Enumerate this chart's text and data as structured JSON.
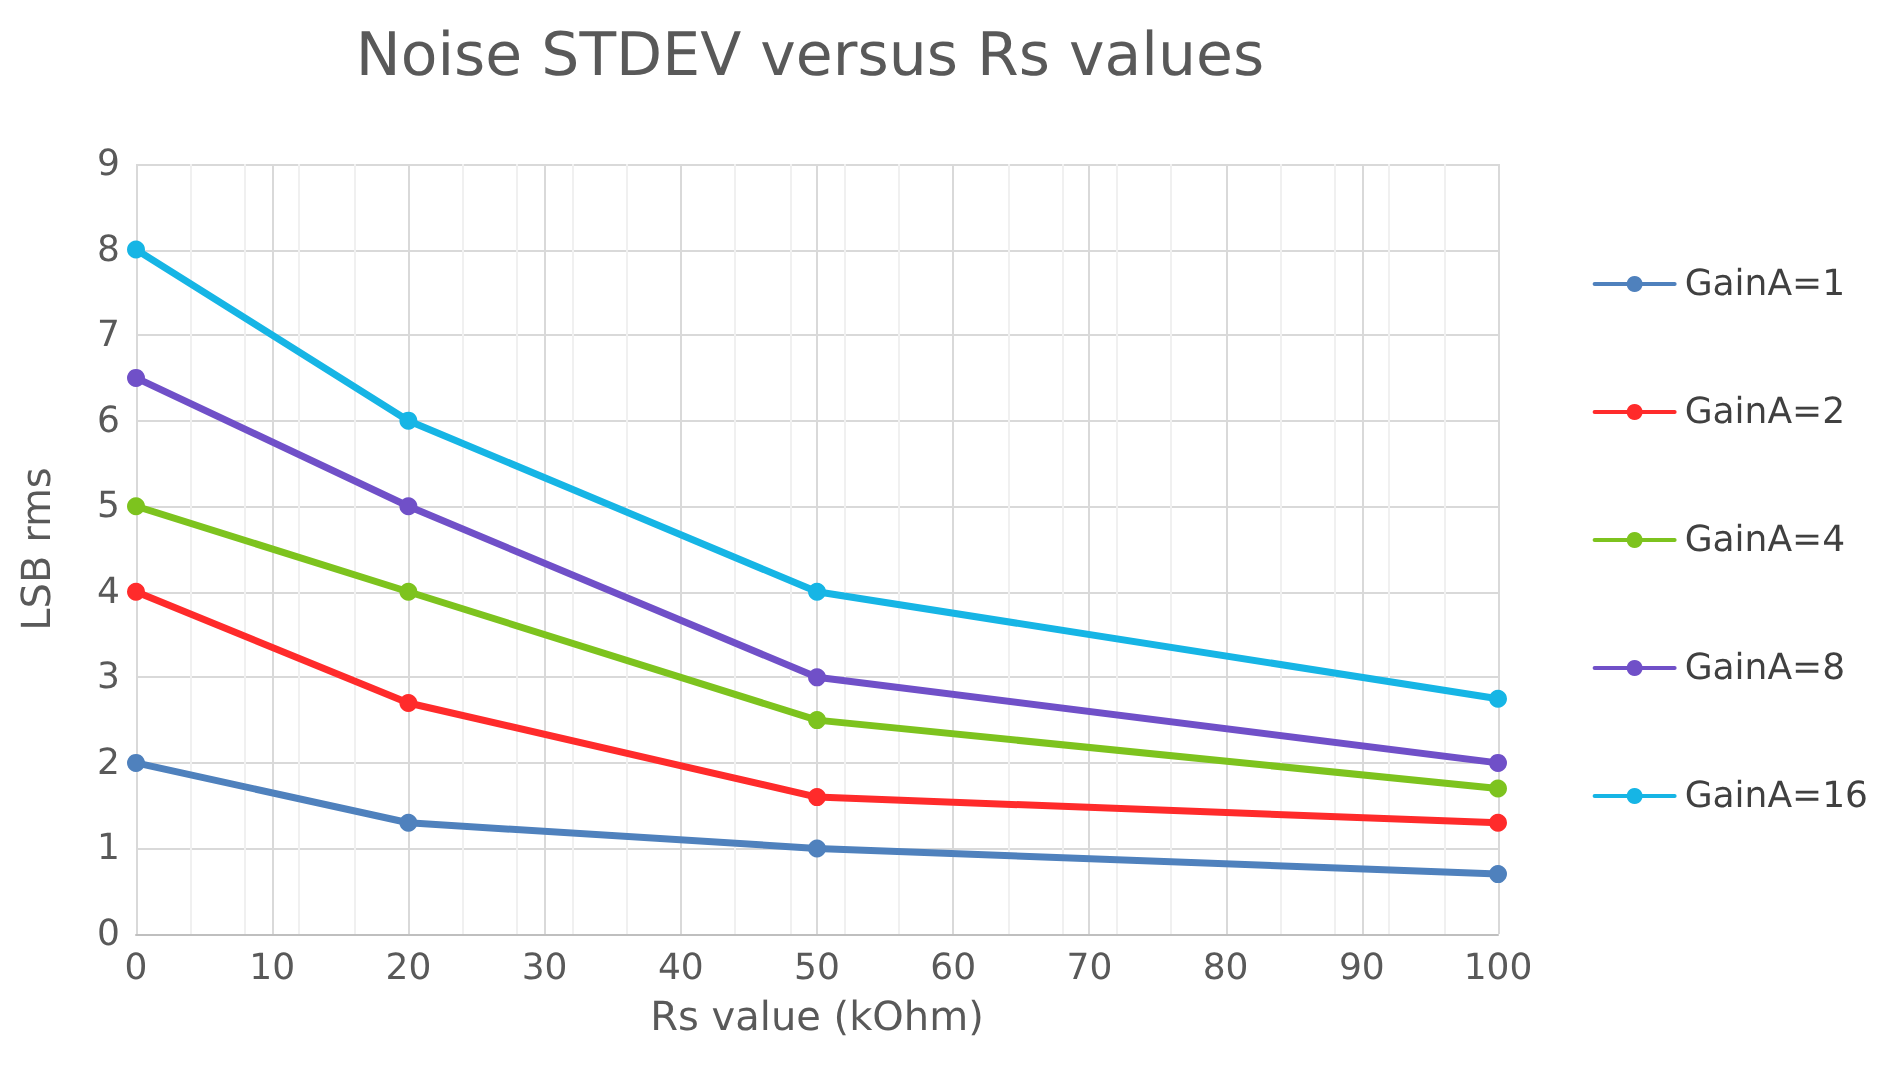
{
  "chart_data": {
    "type": "line",
    "title": "Noise STDEV versus Rs values",
    "xlabel": "Rs value (kOhm)",
    "ylabel": "LSB rms",
    "x": [
      0,
      20,
      50,
      100
    ],
    "series": [
      {
        "name": "GainA=1",
        "color": "#4f81bd",
        "values": [
          2,
          1.3,
          1.0,
          0.7
        ]
      },
      {
        "name": "GainA=2",
        "color": "#ff2b2b",
        "values": [
          4,
          2.7,
          1.6,
          1.3
        ]
      },
      {
        "name": "GainA=4",
        "color": "#7dc31e",
        "values": [
          5,
          4,
          2.5,
          1.7
        ]
      },
      {
        "name": "GainA=8",
        "color": "#7050c8",
        "values": [
          6.5,
          5,
          3,
          2
        ]
      },
      {
        "name": "GainA=16",
        "color": "#16b5e5",
        "values": [
          8,
          6,
          4,
          2.75
        ]
      }
    ],
    "xlim": [
      0,
      100
    ],
    "xticks": [
      0,
      10,
      20,
      30,
      40,
      50,
      60,
      70,
      80,
      90,
      100
    ],
    "ylim": [
      0,
      9
    ],
    "yticks": [
      0,
      1,
      2,
      3,
      4,
      5,
      6,
      7,
      8,
      9
    ],
    "grid": true,
    "legend": "right",
    "marker": "circle",
    "line_style": "solid"
  }
}
